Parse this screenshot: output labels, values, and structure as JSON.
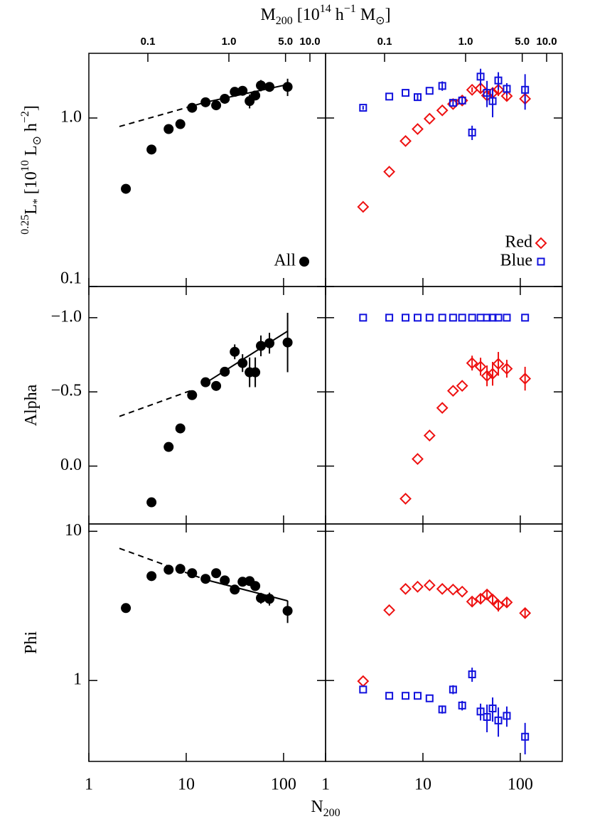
{
  "figure": {
    "x_label": [
      {
        "text": "N"
      },
      {
        "text": "200",
        "pos": "sub"
      }
    ],
    "top_axis": {
      "label": [
        {
          "text": "M"
        },
        {
          "text": "200",
          "pos": "sub"
        },
        {
          "text": " [10"
        },
        {
          "text": "14",
          "pos": "sup"
        },
        {
          "text": " h"
        },
        {
          "text": "−1",
          "pos": "sup"
        },
        {
          "text": " M"
        },
        {
          "text": "⊙",
          "pos": "sub"
        },
        {
          "text": "]"
        }
      ],
      "scale": "log",
      "xlim": [
        0.0187,
        15.6
      ],
      "xticks": [
        0.1,
        {
          "value": 1,
          "label": "1.0"
        },
        {
          "value": 5,
          "label": "5.0"
        },
        {
          "value": 10,
          "label": "10.0"
        }
      ]
    }
  },
  "chart_data": [
    {
      "type": "scatter",
      "xscale": "log",
      "yscale": "log",
      "xlim": [
        1,
        270
      ],
      "xticks": [
        1,
        10,
        100
      ],
      "xtick_labels": false,
      "ylim": [
        0.1,
        2.42
      ],
      "yticks": [
        {
          "value": 1,
          "label": "1.0"
        },
        0.1
      ],
      "ytick_labels": true,
      "ylabel": [
        {
          "text": "0.25",
          "pos": "sup"
        },
        {
          "text": "L"
        },
        {
          "text": "*",
          "pos": "sub"
        },
        {
          "text": " [10"
        },
        {
          "text": "10",
          "pos": "sup"
        },
        {
          "text": " L"
        },
        {
          "text": "⊙",
          "pos": "sub"
        },
        {
          "text": " h"
        },
        {
          "text": "−2",
          "pos": "sup"
        },
        {
          "text": "]"
        }
      ],
      "legend": "bottom-right",
      "series": [
        {
          "name": "All",
          "color": "#000000",
          "marker": "circle",
          "x": [
            2.4,
            4.4,
            6.6,
            8.7,
            11.5,
            15.8,
            20.3,
            24.9,
            31.5,
            37.9,
            44.8,
            51.2,
            58.5,
            71.6,
            110
          ],
          "values": [
            0.38,
            0.65,
            0.86,
            0.92,
            1.15,
            1.24,
            1.19,
            1.3,
            1.43,
            1.45,
            1.26,
            1.36,
            1.56,
            1.53,
            1.53
          ],
          "errors": [
            null,
            null,
            null,
            null,
            null,
            0.04,
            0.04,
            0.04,
            0.05,
            0.06,
            0.12,
            0.08,
            0.12,
            0.08,
            0.18
          ]
        }
      ],
      "fit": {
        "dashed": {
          "x": [
            2.06,
            15.8
          ],
          "y": [
            0.89,
            1.24
          ]
        },
        "solid": {
          "x": [
            15.8,
            110
          ],
          "y": [
            1.24,
            1.58
          ]
        }
      }
    },
    {
      "type": "scatter",
      "xscale": "log",
      "yscale": "log",
      "xlim": [
        1,
        270
      ],
      "xticks": [
        1,
        10,
        100
      ],
      "xtick_labels": false,
      "ylim": [
        0.1,
        2.42
      ],
      "yticks": [
        1,
        0.1
      ],
      "ytick_labels": false,
      "legend": "bottom-right",
      "series": [
        {
          "name": "Red",
          "color": "#ee1111",
          "marker": "diamond",
          "x": [
            2.43,
            4.51,
            6.63,
            8.82,
            11.7,
            15.8,
            20.4,
            25.3,
            32,
            39.1,
            45.5,
            52,
            59.5,
            72.7,
            112
          ],
          "values": [
            0.297,
            0.48,
            0.73,
            0.86,
            0.99,
            1.11,
            1.21,
            1.27,
            1.47,
            1.5,
            1.36,
            1.41,
            1.47,
            1.35,
            1.3
          ],
          "errors": [
            null,
            null,
            null,
            null,
            null,
            null,
            null,
            null,
            0.05,
            0.1,
            0.12,
            0.1,
            0.12,
            0.08,
            0.1
          ]
        },
        {
          "name": "Blue",
          "color": "#1111dd",
          "marker": "square",
          "x": [
            2.43,
            4.51,
            6.63,
            8.82,
            11.7,
            15.8,
            20.4,
            25.3,
            32,
            39.1,
            45.5,
            52,
            59.5,
            72.7,
            112
          ],
          "values": [
            1.15,
            1.34,
            1.41,
            1.33,
            1.45,
            1.55,
            1.23,
            1.27,
            0.82,
            1.76,
            1.41,
            1.26,
            1.67,
            1.49,
            1.47
          ],
          "errors": [
            0.03,
            null,
            null,
            0.05,
            null,
            0.1,
            0.05,
            0.05,
            0.08,
            0.2,
            0.25,
            0.25,
            0.2,
            0.12,
            0.35
          ]
        }
      ]
    },
    {
      "type": "scatter",
      "xscale": "log",
      "yscale": "linear",
      "xlim": [
        1,
        270
      ],
      "xticks": [
        1,
        10,
        100
      ],
      "xtick_labels": false,
      "ylim": [
        0.39,
        -1.21
      ],
      "yticks": [
        {
          "value": -1,
          "label": "−1.0"
        },
        {
          "value": -0.5,
          "label": "−0.5"
        },
        {
          "value": 0,
          "label": "0.0"
        }
      ],
      "ytick_labels": true,
      "ylabel": [
        {
          "text": "Alpha"
        }
      ],
      "series": [
        {
          "color": "#000000",
          "marker": "circle",
          "x": [
            4.4,
            6.6,
            8.7,
            11.5,
            15.8,
            20.3,
            24.9,
            31.5,
            37.9,
            44.8,
            51.2,
            58.5,
            71.6,
            110
          ],
          "values": [
            0.244,
            -0.129,
            -0.254,
            -0.478,
            -0.565,
            -0.54,
            -0.636,
            -0.77,
            -0.694,
            -0.632,
            -0.632,
            -0.81,
            -0.828,
            -0.833
          ],
          "errors": [
            0.03,
            0.03,
            0.03,
            0.03,
            0.03,
            0.03,
            0.03,
            0.05,
            0.06,
            0.1,
            0.1,
            0.07,
            0.07,
            0.2
          ]
        }
      ],
      "fit": {
        "dashed": {
          "x": [
            2.06,
            11.5
          ],
          "y": [
            -0.335,
            -0.512
          ]
        },
        "solid": {
          "x": [
            15.8,
            110
          ],
          "y": [
            -0.56,
            -0.909
          ]
        }
      }
    },
    {
      "type": "scatter",
      "xscale": "log",
      "yscale": "linear",
      "xlim": [
        1,
        270
      ],
      "xticks": [
        1,
        10,
        100
      ],
      "xtick_labels": false,
      "ylim": [
        0.39,
        -1.21
      ],
      "yticks": [
        -1,
        -0.5,
        0
      ],
      "ytick_labels": false,
      "series": [
        {
          "color": "#ee1111",
          "marker": "diamond",
          "x": [
            6.63,
            8.82,
            11.7,
            15.8,
            20.4,
            25.3,
            32,
            39.1,
            45.5,
            52,
            59.5,
            72.7,
            112
          ],
          "values": [
            0.22,
            -0.048,
            -0.206,
            -0.392,
            -0.507,
            -0.541,
            -0.694,
            -0.67,
            -0.608,
            -0.622,
            -0.689,
            -0.656,
            -0.589
          ],
          "errors": [
            null,
            null,
            null,
            null,
            null,
            null,
            0.05,
            0.06,
            0.07,
            0.08,
            0.08,
            0.06,
            0.08
          ]
        },
        {
          "color": "#1111dd",
          "marker": "square",
          "x": [
            2.43,
            4.51,
            6.63,
            8.82,
            11.7,
            15.8,
            20.4,
            25.3,
            32,
            39.1,
            45.5,
            52,
            59.5,
            72.7,
            112
          ],
          "values": [
            -1,
            -1,
            -1,
            -1,
            -1,
            -1,
            -1,
            -1,
            -1,
            -1,
            -1,
            -1,
            -1,
            -1,
            -1
          ],
          "errors": [
            null,
            null,
            null,
            null,
            null,
            null,
            null,
            null,
            null,
            null,
            null,
            null,
            null,
            null,
            null
          ]
        }
      ]
    },
    {
      "type": "scatter",
      "xscale": "log",
      "yscale": "log",
      "xlim": [
        1,
        270
      ],
      "xticks": [
        1,
        10,
        100
      ],
      "xtick_labels": true,
      "ylim": [
        0.287,
        11.2
      ],
      "yticks": [
        10,
        1
      ],
      "ytick_labels": true,
      "ylabel": [
        {
          "text": "Phi"
        }
      ],
      "series": [
        {
          "color": "#000000",
          "marker": "circle",
          "x": [
            2.4,
            4.4,
            6.6,
            8.7,
            11.5,
            15.8,
            20.3,
            24.9,
            31.5,
            37.9,
            44.8,
            51.2,
            58.5,
            71.6,
            110
          ],
          "values": [
            3.06,
            5.01,
            5.53,
            5.6,
            5.24,
            4.8,
            5.24,
            4.69,
            4.07,
            4.59,
            4.64,
            4.3,
            3.57,
            3.53,
            2.93
          ],
          "errors": [
            null,
            null,
            null,
            null,
            null,
            null,
            null,
            null,
            null,
            0.2,
            0.25,
            0.3,
            0.3,
            0.35,
            0.5
          ]
        }
      ],
      "fit": {
        "dashed": {
          "x": [
            2.06,
            15.8
          ],
          "y": [
            7.69,
            4.74
          ]
        },
        "solid": {
          "x": [
            15.8,
            110
          ],
          "y": [
            4.74,
            3.42
          ]
        }
      }
    },
    {
      "type": "scatter",
      "xscale": "log",
      "yscale": "log",
      "xlim": [
        1,
        270
      ],
      "xticks": [
        1,
        10,
        100
      ],
      "xtick_labels": true,
      "ylim": [
        0.287,
        11.2
      ],
      "yticks": [
        10,
        1
      ],
      "ytick_labels": false,
      "series": [
        {
          "color": "#ee1111",
          "marker": "diamond",
          "x": [
            2.43,
            4.51,
            6.63,
            8.82,
            11.7,
            15.8,
            20.4,
            25.3,
            32,
            39.1,
            45.5,
            52,
            59.5,
            72.7,
            112
          ],
          "values": [
            0.99,
            2.96,
            4.11,
            4.25,
            4.35,
            4.11,
            4.07,
            3.94,
            3.38,
            3.53,
            3.77,
            3.49,
            3.2,
            3.34,
            2.83
          ],
          "errors": [
            null,
            null,
            null,
            null,
            null,
            null,
            null,
            null,
            0.2,
            0.25,
            0.3,
            0.25,
            0.3,
            0.2,
            0.2
          ]
        },
        {
          "color": "#1111dd",
          "marker": "square",
          "x": [
            2.43,
            4.51,
            6.63,
            8.82,
            11.7,
            15.8,
            20.4,
            25.3,
            32,
            39.1,
            45.5,
            52,
            59.5,
            72.7,
            112
          ],
          "values": [
            0.87,
            0.79,
            0.79,
            0.79,
            0.76,
            0.64,
            0.87,
            0.68,
            1.1,
            0.62,
            0.57,
            0.65,
            0.54,
            0.58,
            0.42
          ],
          "errors": [
            null,
            null,
            null,
            null,
            null,
            0.04,
            0.06,
            0.05,
            0.12,
            0.08,
            0.12,
            0.12,
            0.12,
            0.09,
            0.1
          ]
        }
      ]
    }
  ]
}
